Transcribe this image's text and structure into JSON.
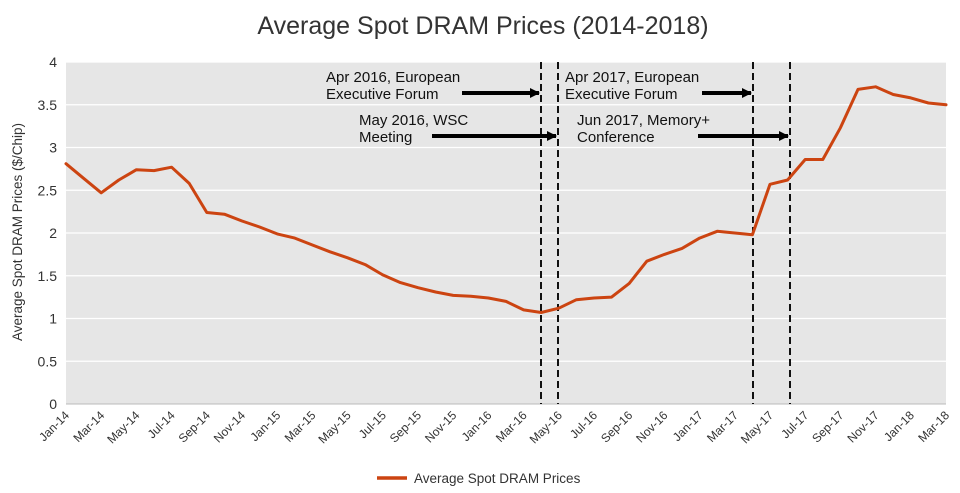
{
  "chart_data": {
    "type": "line",
    "title": "Average Spot DRAM Prices (2014-2018)",
    "xlabel": "",
    "ylabel": "Average Spot DRAM Prices ($/Chip)",
    "ylim": [
      0,
      4
    ],
    "yticks": [
      "0",
      "0.5",
      "1",
      "1.5",
      "2",
      "2.5",
      "3",
      "3.5",
      "4"
    ],
    "grid": true,
    "legend_position": "bottom-center",
    "x_tick_labels": [
      "Jan-14",
      "Mar-14",
      "May-14",
      "Jul-14",
      "Sep-14",
      "Nov-14",
      "Jan-15",
      "Mar-15",
      "May-15",
      "Jul-15",
      "Sep-15",
      "Nov-15",
      "Jan-16",
      "Mar-16",
      "May-16",
      "Jul-16",
      "Sep-16",
      "Nov-16",
      "Jan-17",
      "Mar-17",
      "May-17",
      "Jul-17",
      "Sep-17",
      "Nov-17",
      "Jan-18",
      "Mar-18"
    ],
    "line_color": "#cc4411",
    "plot_background": "#e6e6e6",
    "series": [
      {
        "name": "Average Spot DRAM Prices",
        "x": [
          "Jan-14",
          "Feb-14",
          "Mar-14",
          "Apr-14",
          "May-14",
          "Jun-14",
          "Jul-14",
          "Aug-14",
          "Sep-14",
          "Oct-14",
          "Nov-14",
          "Dec-14",
          "Jan-15",
          "Feb-15",
          "Mar-15",
          "Apr-15",
          "May-15",
          "Jun-15",
          "Jul-15",
          "Aug-15",
          "Sep-15",
          "Oct-15",
          "Nov-15",
          "Dec-15",
          "Jan-16",
          "Feb-16",
          "Mar-16",
          "Apr-16",
          "May-16",
          "Jun-16",
          "Jul-16",
          "Aug-16",
          "Sep-16",
          "Oct-16",
          "Nov-16",
          "Dec-16",
          "Jan-17",
          "Feb-17",
          "Mar-17",
          "Apr-17",
          "May-17",
          "Jun-17",
          "Jul-17",
          "Aug-17",
          "Sep-17",
          "Oct-17",
          "Nov-17",
          "Dec-17",
          "Jan-18",
          "Feb-18",
          "Mar-18"
        ],
        "values": [
          2.81,
          2.64,
          2.47,
          2.62,
          2.74,
          2.73,
          2.77,
          2.58,
          2.24,
          2.22,
          2.14,
          2.07,
          1.99,
          1.94,
          1.86,
          1.78,
          1.71,
          1.63,
          1.51,
          1.42,
          1.36,
          1.31,
          1.27,
          1.26,
          1.24,
          1.2,
          1.1,
          1.07,
          1.12,
          1.22,
          1.24,
          1.25,
          1.41,
          1.67,
          1.75,
          1.82,
          1.94,
          2.02,
          2.0,
          1.98,
          2.57,
          2.62,
          2.86,
          2.86,
          3.23,
          3.68,
          3.71,
          3.62,
          3.58,
          3.52,
          3.5
        ]
      }
    ],
    "events": [
      {
        "month": "Apr-16",
        "text_lines": [
          "Apr 2016, European",
          "Executive Forum"
        ]
      },
      {
        "month": "May-16",
        "text_lines": [
          "May 2016, WSC",
          "Meeting"
        ]
      },
      {
        "month": "Apr-17",
        "text_lines": [
          "Apr 2017, European",
          "Executive Forum"
        ]
      },
      {
        "month": "Jun-17",
        "text_lines": [
          "Jun 2017, Memory+",
          "Conference"
        ]
      }
    ]
  }
}
